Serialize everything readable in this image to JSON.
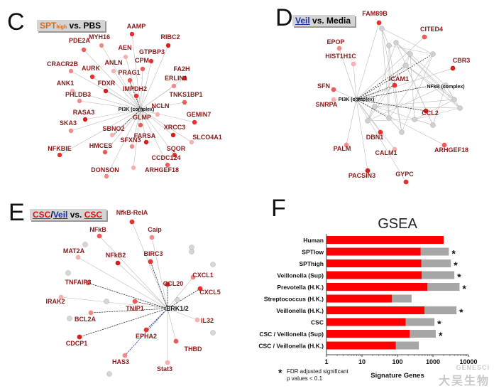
{
  "panels": {
    "C": {
      "label": "C",
      "title_parts": [
        "SPT",
        "high",
        " vs. PBS"
      ]
    },
    "D": {
      "label": "D",
      "title_parts": [
        "Veil",
        " vs. Media"
      ]
    },
    "E": {
      "label": "E",
      "title_parts": [
        "CSC",
        "/",
        "Veil",
        " vs. ",
        "CSC"
      ]
    },
    "F": {
      "label": "F"
    }
  },
  "networkC": {
    "center": "PI3K (complex)",
    "genes": [
      "AAMP",
      "PDE2A",
      "MYH16",
      "AEN",
      "RIBC2",
      "GTPBP3",
      "CPM",
      "CRACR2B",
      "ANLN",
      "FA2H",
      "AURK",
      "PRAG1",
      "ERLIN1",
      "ANK1",
      "FDXR",
      "IMPDH2",
      "TNKS1BP1",
      "PHLDB3",
      "NCLN",
      "RASA3",
      "GEMIN7",
      "GLMP",
      "SKA3",
      "SBNO2",
      "XRCC3",
      "NFKBIE",
      "HMCES",
      "SFXN3",
      "SLCO4A1",
      "FARSA",
      "SQOR",
      "CCDC124",
      "DONSON",
      "ARHGEF18"
    ]
  },
  "networkD": {
    "center": "PI3K (complex)",
    "genes": [
      "FAM89B",
      "CITED4",
      "EPOP",
      "HIST1H1C",
      "CBR3",
      "ICAM1",
      "SFN",
      "NFkB (complex)",
      "SNRPA",
      "CCL2",
      "DBN1",
      "ARHGEF18",
      "PALM",
      "CALM1",
      "PACSIN3",
      "GYPC"
    ]
  },
  "networkE": {
    "center": "ERK1/2",
    "genes": [
      "NfkB-RelA",
      "NFkB",
      "Caip",
      "MAT2A",
      "NFkB2",
      "BIRC3",
      "TNFAIP3",
      "CXCL1",
      "IRAK2",
      "CCL20",
      "CXCL5",
      "TNIP1",
      "BCL2A",
      "IL32",
      "CDCP1",
      "EPHA2",
      "THBD",
      "HAS3",
      "Stat3"
    ]
  },
  "chart_data": {
    "type": "bar",
    "title": "GSEA",
    "xlabel": "Signature Genes",
    "xscale": "log",
    "xlim": [
      1,
      10000
    ],
    "xticks": [
      "1",
      "10",
      "100",
      "1000",
      "10000"
    ],
    "categories": [
      "Human",
      "SPTlow",
      "SPThigh",
      "Veillonella (Sup)",
      "Prevotella (H.K.)",
      "Streptococcus (H.K.)",
      "Veillonella (H.K.)",
      "CSC",
      "CSC / Veillonella (Sup)",
      "CSC / Veillonella (H.K.)"
    ],
    "series": [
      {
        "values": [
          2000,
          450,
          470,
          480,
          700,
          70,
          580,
          170,
          220,
          90
        ],
        "color": "#ff0000"
      },
      {
        "values": [
          0,
          2800,
          3200,
          4000,
          5600,
          250,
          4600,
          1100,
          1200,
          400
        ],
        "color": "#a6a6a6"
      }
    ],
    "significant": [
      false,
      true,
      true,
      true,
      true,
      false,
      true,
      true,
      true,
      false
    ],
    "annotation_star": "*",
    "annotation_text": [
      "FDR adjusted significant",
      "p values < 0.1"
    ]
  },
  "watermark": {
    "line1": "大吴生物",
    "line2": "GENESCI"
  }
}
